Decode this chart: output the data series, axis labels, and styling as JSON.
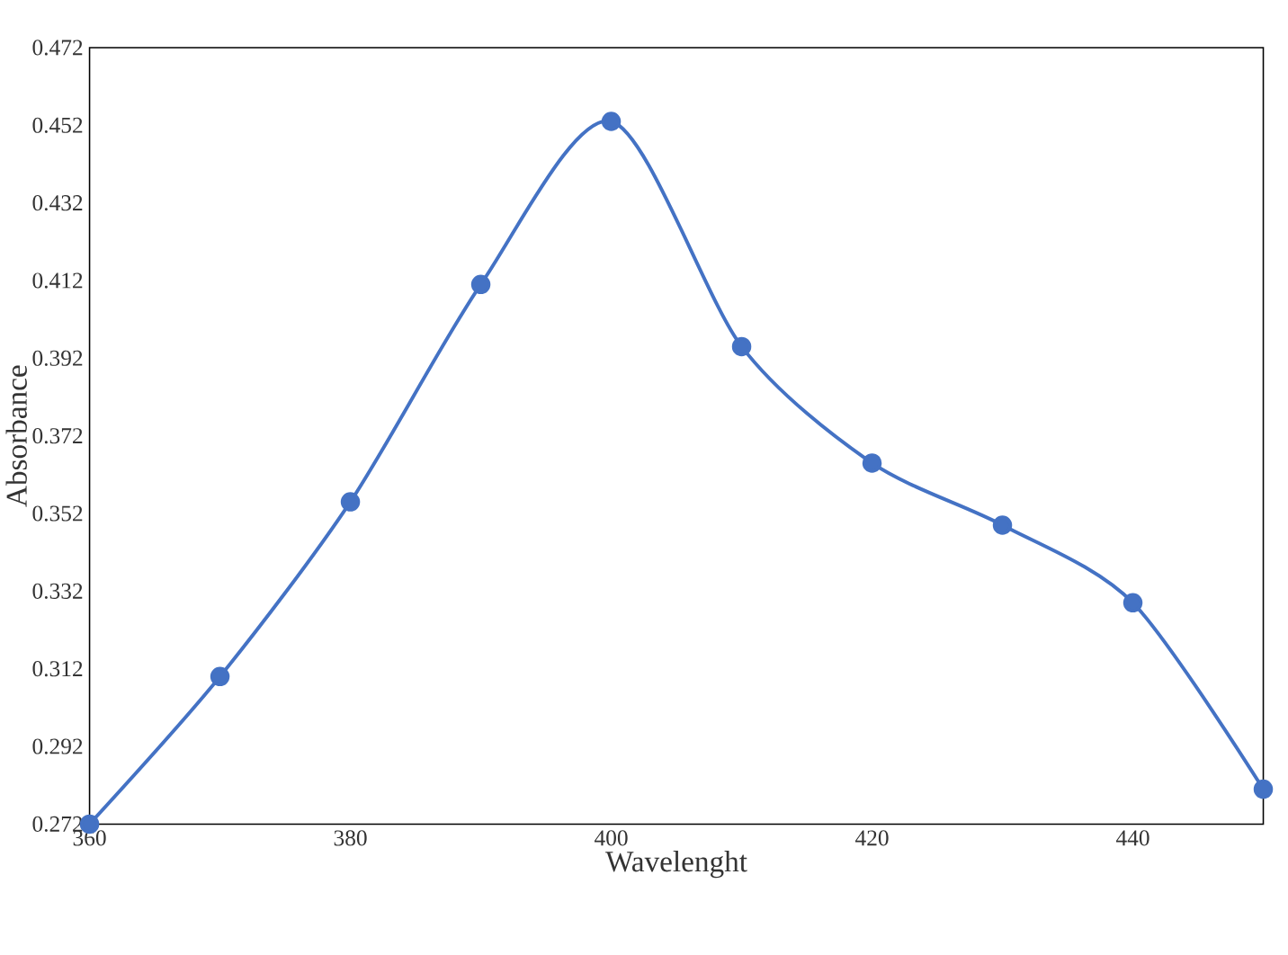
{
  "chart_data": {
    "type": "line",
    "xlabel": "Wavelenght",
    "ylabel": "Absorbance",
    "x": [
      360,
      370,
      380,
      390,
      400,
      410,
      420,
      430,
      440,
      450
    ],
    "series": [
      {
        "color": "#4472c4",
        "values": [
          0.272,
          0.31,
          0.355,
          0.411,
          0.453,
          0.395,
          0.365,
          0.349,
          0.329,
          0.281
        ]
      }
    ],
    "xlim": [
      360,
      450
    ],
    "ylim": [
      0.272,
      0.472
    ],
    "xticks": [
      360,
      380,
      400,
      420,
      440
    ],
    "yticks": [
      0.272,
      0.292,
      0.312,
      0.332,
      0.352,
      0.372,
      0.392,
      0.412,
      0.432,
      0.452,
      0.472
    ],
    "grid": false,
    "marker": "circle",
    "line_style": "solid"
  }
}
